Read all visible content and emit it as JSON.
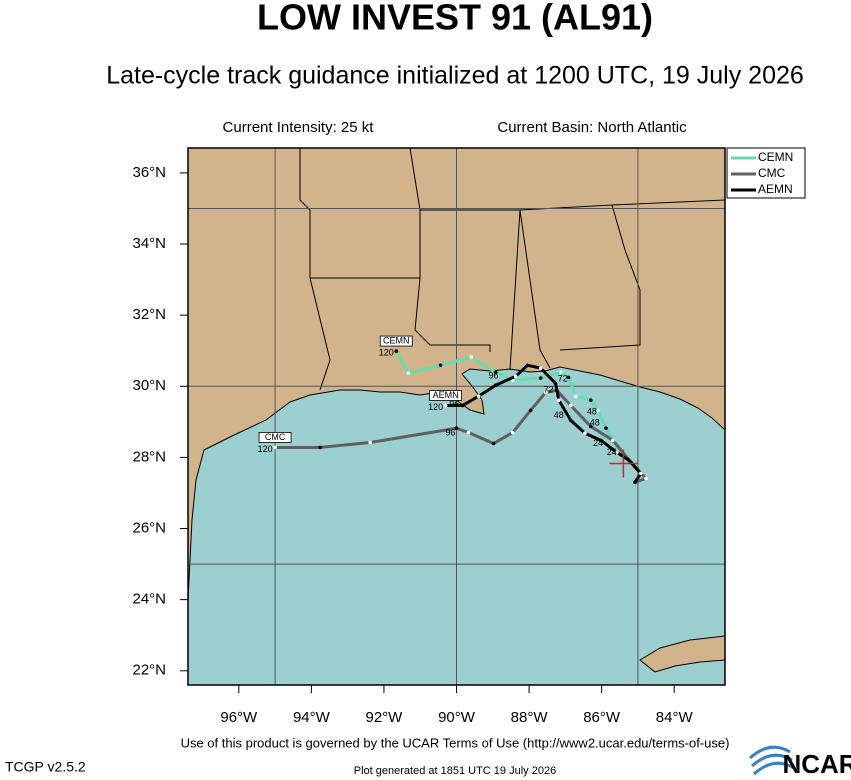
{
  "chart_data": {
    "type": "track_map",
    "title": "LOW INVEST 91 (AL91)",
    "subtitle": "Late-cycle track guidance initialized at 1200 UTC, 19 July 2026",
    "intensity": "Current Intensity: 25 kt",
    "basin": "Current Basin: North Atlantic",
    "xlim": [
      -97.4,
      -82.6
    ],
    "ylim": [
      21.6,
      36.7
    ],
    "xticks": [
      {
        "value": -96,
        "label": "96°W"
      },
      {
        "value": -94,
        "label": "94°W"
      },
      {
        "value": -92,
        "label": "92°W"
      },
      {
        "value": -90,
        "label": "90°W"
      },
      {
        "value": -88,
        "label": "88°W"
      },
      {
        "value": -86,
        "label": "86°W"
      },
      {
        "value": -84,
        "label": "84°W"
      }
    ],
    "yticks": [
      {
        "value": 22,
        "label": "22°N"
      },
      {
        "value": 24,
        "label": "24°N"
      },
      {
        "value": 26,
        "label": "26°N"
      },
      {
        "value": 28,
        "label": "28°N"
      },
      {
        "value": 30,
        "label": "30°N"
      },
      {
        "value": 32,
        "label": "32°N"
      },
      {
        "value": 34,
        "label": "34°N"
      },
      {
        "value": 36,
        "label": "36°N"
      }
    ],
    "grid_lon": [
      -95,
      -90,
      -85
    ],
    "grid_lat": [
      25,
      30,
      35
    ],
    "series": [
      {
        "name": "CEMN",
        "color": "#66ddb0",
        "end_label": "120",
        "lon": [
          -85.41,
          -85.69,
          -85.88,
          -86.1,
          -86.3,
          -86.71,
          -86.91,
          -87.13,
          -87.68,
          -88.45,
          -88.92,
          -89.59,
          -90.44,
          -91.33,
          -91.66
        ],
        "lat": [
          28.06,
          28.48,
          28.82,
          29.32,
          29.61,
          29.72,
          30.25,
          30.39,
          30.23,
          30.17,
          30.39,
          30.82,
          30.59,
          30.37,
          30.99
        ]
      },
      {
        "name": "CMC",
        "color": "#606060",
        "end_label": "120",
        "lon": [
          -85.08,
          -84.78,
          -85.19,
          -85.69,
          -86.3,
          -86.85,
          -87.24,
          -87.54,
          -87.96,
          -88.45,
          -88.98,
          -89.67,
          -90.0,
          -92.38,
          -93.76,
          -95.0
        ],
        "lat": [
          27.3,
          27.41,
          27.86,
          28.48,
          28.87,
          29.46,
          29.89,
          29.83,
          29.32,
          28.7,
          28.39,
          28.7,
          28.82,
          28.42,
          28.28,
          28.28
        ]
      },
      {
        "name": "AEMN",
        "color": "#000000",
        "end_label": "120",
        "lon": [
          -85.08,
          -84.92,
          -85.25,
          -85.58,
          -86.02,
          -86.46,
          -86.85,
          -87.18,
          -87.27,
          -87.68,
          -88.04,
          -88.37,
          -88.92,
          -89.39,
          -89.83,
          -90.3
        ],
        "lat": [
          27.3,
          27.55,
          27.92,
          28.14,
          28.48,
          28.68,
          29.04,
          29.61,
          30.08,
          30.51,
          30.59,
          30.28,
          30.03,
          29.72,
          29.46,
          29.46
        ]
      }
    ],
    "annotations": [
      {
        "text": "24",
        "lon": -86.1,
        "lat": 28.39
      },
      {
        "text": "24",
        "lon": -85.72,
        "lat": 28.14
      },
      {
        "text": "48",
        "lon": -87.18,
        "lat": 29.18
      },
      {
        "text": "48",
        "lon": -86.27,
        "lat": 29.27
      },
      {
        "text": "48",
        "lon": -86.19,
        "lat": 28.96
      },
      {
        "text": "72",
        "lon": -87.07,
        "lat": 30.2
      },
      {
        "text": "72",
        "lon": -87.46,
        "lat": 29.89
      },
      {
        "text": "96",
        "lon": -88.98,
        "lat": 30.28
      },
      {
        "text": "96",
        "lon": -90.17,
        "lat": 28.68
      },
      {
        "text": "96",
        "lon": -90.06,
        "lat": 29.49
      }
    ],
    "storm_center": {
      "lon": -85.4,
      "lat": 27.83
    },
    "footer_terms": "Use of this product is governed by the UCAR Terms of Use (http://www2.ucar.edu/terms-of-use)",
    "footer_version": "TCGP v2.5.2",
    "footer_generated": "Plot generated at 1851 UTC  19 July 2026",
    "logo": "NCAR"
  }
}
